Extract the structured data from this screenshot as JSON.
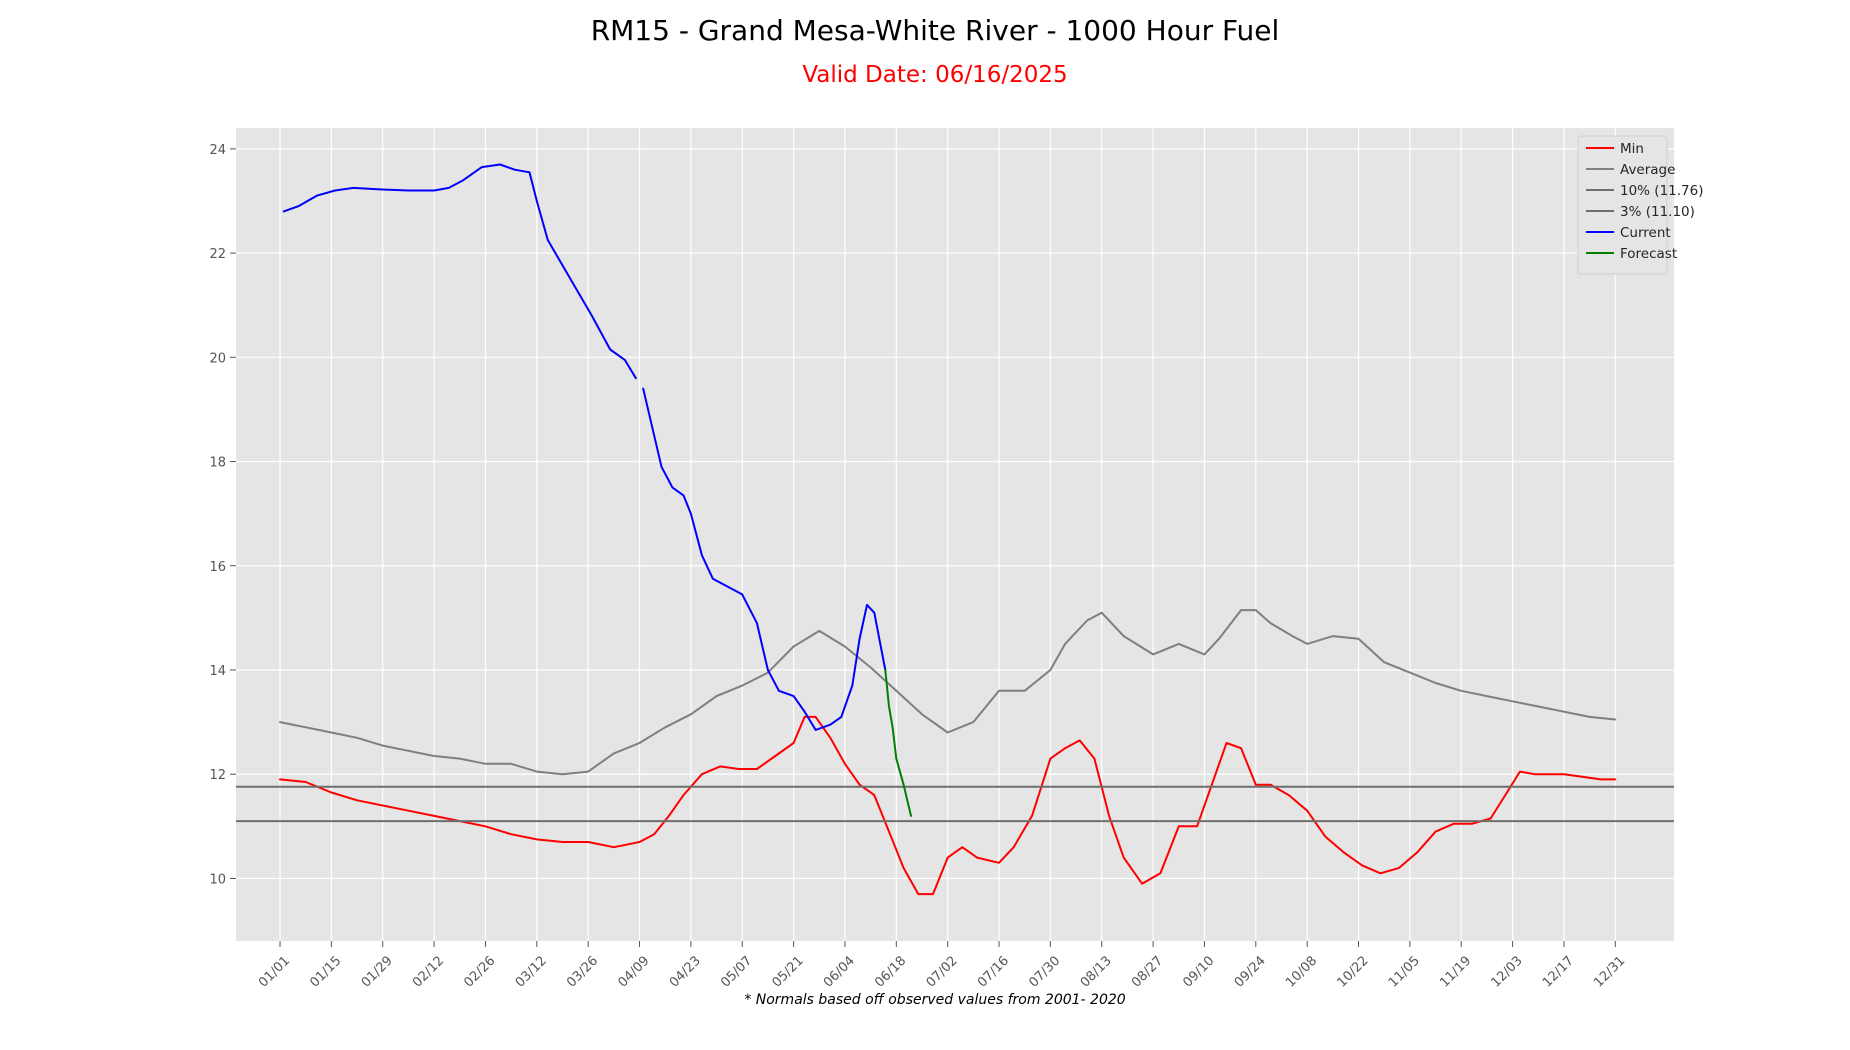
{
  "page": {
    "title": "RM15 - Grand Mesa-White River - 1000 Hour Fuel",
    "subtitle": "Valid Date: 06/16/2025",
    "footnote": "* Normals based off observed values from 2001- 2020"
  },
  "chart_data": {
    "type": "line",
    "title": "RM15 - Grand Mesa-White River - 1000 Hour Fuel",
    "subtitle": "Valid Date: 06/16/2025",
    "xlabel": "",
    "ylabel": "",
    "x_unit": "day of year",
    "xlim": [
      -12,
      380
    ],
    "ylim": [
      8.8,
      24.4
    ],
    "x_ticks": [
      {
        "day": 0,
        "label": "01/01"
      },
      {
        "day": 14,
        "label": "01/15"
      },
      {
        "day": 28,
        "label": "01/29"
      },
      {
        "day": 42,
        "label": "02/12"
      },
      {
        "day": 56,
        "label": "02/26"
      },
      {
        "day": 70,
        "label": "03/12"
      },
      {
        "day": 84,
        "label": "03/26"
      },
      {
        "day": 98,
        "label": "04/09"
      },
      {
        "day": 112,
        "label": "04/23"
      },
      {
        "day": 126,
        "label": "05/07"
      },
      {
        "day": 140,
        "label": "05/21"
      },
      {
        "day": 154,
        "label": "06/04"
      },
      {
        "day": 168,
        "label": "06/18"
      },
      {
        "day": 182,
        "label": "07/02"
      },
      {
        "day": 196,
        "label": "07/16"
      },
      {
        "day": 210,
        "label": "07/30"
      },
      {
        "day": 224,
        "label": "08/13"
      },
      {
        "day": 238,
        "label": "08/27"
      },
      {
        "day": 252,
        "label": "09/10"
      },
      {
        "day": 266,
        "label": "09/24"
      },
      {
        "day": 280,
        "label": "10/08"
      },
      {
        "day": 294,
        "label": "10/22"
      },
      {
        "day": 308,
        "label": "11/05"
      },
      {
        "day": 322,
        "label": "11/19"
      },
      {
        "day": 336,
        "label": "12/03"
      },
      {
        "day": 350,
        "label": "12/17"
      },
      {
        "day": 364,
        "label": "12/31"
      }
    ],
    "y_ticks": [
      10,
      12,
      14,
      16,
      18,
      20,
      22,
      24
    ],
    "grid": true,
    "legend_position": "top-right",
    "series": [
      {
        "name": "Min",
        "color": "#ff0000",
        "points": [
          [
            0,
            11.9
          ],
          [
            7,
            11.85
          ],
          [
            14,
            11.65
          ],
          [
            21,
            11.5
          ],
          [
            28,
            11.4
          ],
          [
            35,
            11.3
          ],
          [
            42,
            11.2
          ],
          [
            49,
            11.1
          ],
          [
            56,
            11.0
          ],
          [
            63,
            10.85
          ],
          [
            70,
            10.75
          ],
          [
            77,
            10.7
          ],
          [
            84,
            10.7
          ],
          [
            91,
            10.6
          ],
          [
            98,
            10.7
          ],
          [
            102,
            10.85
          ],
          [
            106,
            11.2
          ],
          [
            110,
            11.6
          ],
          [
            115,
            12.0
          ],
          [
            120,
            12.15
          ],
          [
            125,
            12.1
          ],
          [
            130,
            12.1
          ],
          [
            135,
            12.35
          ],
          [
            140,
            12.6
          ],
          [
            143,
            13.1
          ],
          [
            146,
            13.1
          ],
          [
            150,
            12.7
          ],
          [
            154,
            12.2
          ],
          [
            158,
            11.8
          ],
          [
            162,
            11.6
          ],
          [
            166,
            10.9
          ],
          [
            170,
            10.2
          ],
          [
            174,
            9.7
          ],
          [
            178,
            9.7
          ],
          [
            182,
            10.4
          ],
          [
            186,
            10.6
          ],
          [
            190,
            10.4
          ],
          [
            196,
            10.3
          ],
          [
            200,
            10.6
          ],
          [
            205,
            11.2
          ],
          [
            210,
            12.3
          ],
          [
            214,
            12.5
          ],
          [
            218,
            12.65
          ],
          [
            222,
            12.3
          ],
          [
            226,
            11.2
          ],
          [
            230,
            10.4
          ],
          [
            235,
            9.9
          ],
          [
            240,
            10.1
          ],
          [
            245,
            11.0
          ],
          [
            250,
            11.0
          ],
          [
            254,
            11.8
          ],
          [
            258,
            12.6
          ],
          [
            262,
            12.5
          ],
          [
            266,
            11.8
          ],
          [
            270,
            11.8
          ],
          [
            275,
            11.6
          ],
          [
            280,
            11.3
          ],
          [
            285,
            10.8
          ],
          [
            290,
            10.5
          ],
          [
            295,
            10.25
          ],
          [
            300,
            10.1
          ],
          [
            305,
            10.2
          ],
          [
            310,
            10.5
          ],
          [
            315,
            10.9
          ],
          [
            320,
            11.05
          ],
          [
            325,
            11.05
          ],
          [
            330,
            11.15
          ],
          [
            334,
            11.6
          ],
          [
            338,
            12.05
          ],
          [
            342,
            12.0
          ],
          [
            346,
            12.0
          ],
          [
            350,
            12.0
          ],
          [
            355,
            11.95
          ],
          [
            360,
            11.9
          ],
          [
            364,
            11.9
          ]
        ]
      },
      {
        "name": "Average",
        "color": "#7f7f7f",
        "points": [
          [
            0,
            13.0
          ],
          [
            7,
            12.9
          ],
          [
            14,
            12.8
          ],
          [
            21,
            12.7
          ],
          [
            28,
            12.55
          ],
          [
            35,
            12.45
          ],
          [
            42,
            12.35
          ],
          [
            49,
            12.3
          ],
          [
            56,
            12.2
          ],
          [
            63,
            12.2
          ],
          [
            70,
            12.05
          ],
          [
            77,
            12.0
          ],
          [
            84,
            12.05
          ],
          [
            91,
            12.4
          ],
          [
            98,
            12.6
          ],
          [
            105,
            12.9
          ],
          [
            112,
            13.15
          ],
          [
            119,
            13.5
          ],
          [
            126,
            13.7
          ],
          [
            133,
            13.95
          ],
          [
            140,
            14.45
          ],
          [
            147,
            14.75
          ],
          [
            154,
            14.45
          ],
          [
            161,
            14.05
          ],
          [
            168,
            13.6
          ],
          [
            175,
            13.15
          ],
          [
            182,
            12.8
          ],
          [
            189,
            13.0
          ],
          [
            196,
            13.6
          ],
          [
            203,
            13.6
          ],
          [
            210,
            14.0
          ],
          [
            214,
            14.5
          ],
          [
            220,
            14.95
          ],
          [
            224,
            15.1
          ],
          [
            230,
            14.65
          ],
          [
            238,
            14.3
          ],
          [
            245,
            14.5
          ],
          [
            252,
            14.3
          ],
          [
            256,
            14.6
          ],
          [
            262,
            15.15
          ],
          [
            266,
            15.15
          ],
          [
            270,
            14.9
          ],
          [
            276,
            14.65
          ],
          [
            280,
            14.5
          ],
          [
            287,
            14.65
          ],
          [
            294,
            14.6
          ],
          [
            301,
            14.15
          ],
          [
            308,
            13.95
          ],
          [
            315,
            13.75
          ],
          [
            322,
            13.6
          ],
          [
            329,
            13.5
          ],
          [
            336,
            13.4
          ],
          [
            343,
            13.3
          ],
          [
            350,
            13.2
          ],
          [
            357,
            13.1
          ],
          [
            364,
            13.05
          ]
        ]
      },
      {
        "name": "10% (11.76)",
        "color": "#6e6e6e",
        "constant": 11.76,
        "from": -12,
        "to": 380
      },
      {
        "name": "3% (11.10)",
        "color": "#6e6e6e",
        "constant": 11.1,
        "from": -12,
        "to": 380
      },
      {
        "name": "Current",
        "color": "#0000ff",
        "segments": [
          [
            [
              1,
              22.8
            ],
            [
              5,
              22.9
            ],
            [
              10,
              23.1
            ],
            [
              15,
              23.2
            ],
            [
              20,
              23.25
            ],
            [
              28,
              23.22
            ],
            [
              35,
              23.2
            ],
            [
              42,
              23.2
            ],
            [
              46,
              23.25
            ],
            [
              50,
              23.4
            ],
            [
              55,
              23.65
            ],
            [
              60,
              23.7
            ],
            [
              64,
              23.6
            ],
            [
              68,
              23.55
            ],
            [
              70,
              23.0
            ],
            [
              73,
              22.25
            ],
            [
              80,
              21.4
            ],
            [
              85,
              20.8
            ],
            [
              90,
              20.15
            ],
            [
              94,
              19.95
            ],
            [
              97,
              19.6
            ]
          ],
          [
            [
              99,
              19.4
            ],
            [
              101,
              18.8
            ],
            [
              104,
              17.9
            ],
            [
              107,
              17.5
            ],
            [
              110,
              17.35
            ],
            [
              112,
              17.0
            ],
            [
              115,
              16.2
            ],
            [
              118,
              15.75
            ],
            [
              122,
              15.6
            ],
            [
              126,
              15.45
            ],
            [
              130,
              14.9
            ],
            [
              133,
              14.0
            ],
            [
              136,
              13.6
            ],
            [
              140,
              13.5
            ],
            [
              143,
              13.2
            ],
            [
              146,
              12.85
            ],
            [
              150,
              12.95
            ],
            [
              153,
              13.1
            ],
            [
              156,
              13.7
            ],
            [
              158,
              14.6
            ],
            [
              160,
              15.25
            ],
            [
              162,
              15.1
            ],
            [
              165,
              14.0
            ]
          ]
        ]
      },
      {
        "name": "Forecast",
        "color": "#008000",
        "points": [
          [
            165,
            14.0
          ],
          [
            166,
            13.3
          ],
          [
            167,
            12.9
          ],
          [
            168,
            12.3
          ],
          [
            170,
            11.8
          ],
          [
            172,
            11.2
          ]
        ]
      }
    ]
  }
}
